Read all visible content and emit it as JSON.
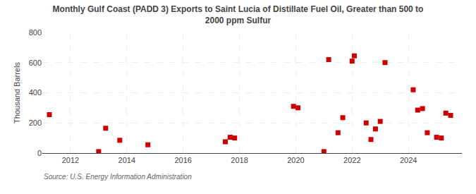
{
  "chart_data": {
    "type": "scatter",
    "title": "Monthly Gulf Coast (PADD 3) Exports to Saint Lucia of Distillate Fuel Oil, Greater than 500 to\n2000 ppm Sulfur",
    "ylabel": "Thousand Barrels",
    "source": "Source: U.S. Energy Information Administration",
    "x": [
      2011.25,
      2013.0,
      2013.25,
      2013.75,
      2014.75,
      2017.5,
      2017.67,
      2017.83,
      2019.92,
      2020.08,
      2021.0,
      2021.17,
      2021.5,
      2021.67,
      2022.0,
      2022.08,
      2022.5,
      2022.67,
      2022.83,
      2023.0,
      2023.17,
      2024.17,
      2024.33,
      2024.5,
      2024.67,
      2025.0,
      2025.17,
      2025.33,
      2025.5
    ],
    "values": [
      255,
      10,
      165,
      85,
      55,
      75,
      105,
      100,
      310,
      300,
      10,
      620,
      135,
      235,
      610,
      645,
      200,
      90,
      160,
      210,
      600,
      420,
      285,
      295,
      135,
      105,
      100,
      265,
      250
    ],
    "color": "#cc0000",
    "marker": "square",
    "xlim": [
      2011.0,
      2025.9
    ],
    "xticks": [
      2012,
      2014,
      2016,
      2018,
      2020,
      2022,
      2024
    ],
    "ylim": [
      0,
      800
    ],
    "yticks": [
      0,
      200,
      400,
      600,
      800
    ],
    "grid": true
  }
}
